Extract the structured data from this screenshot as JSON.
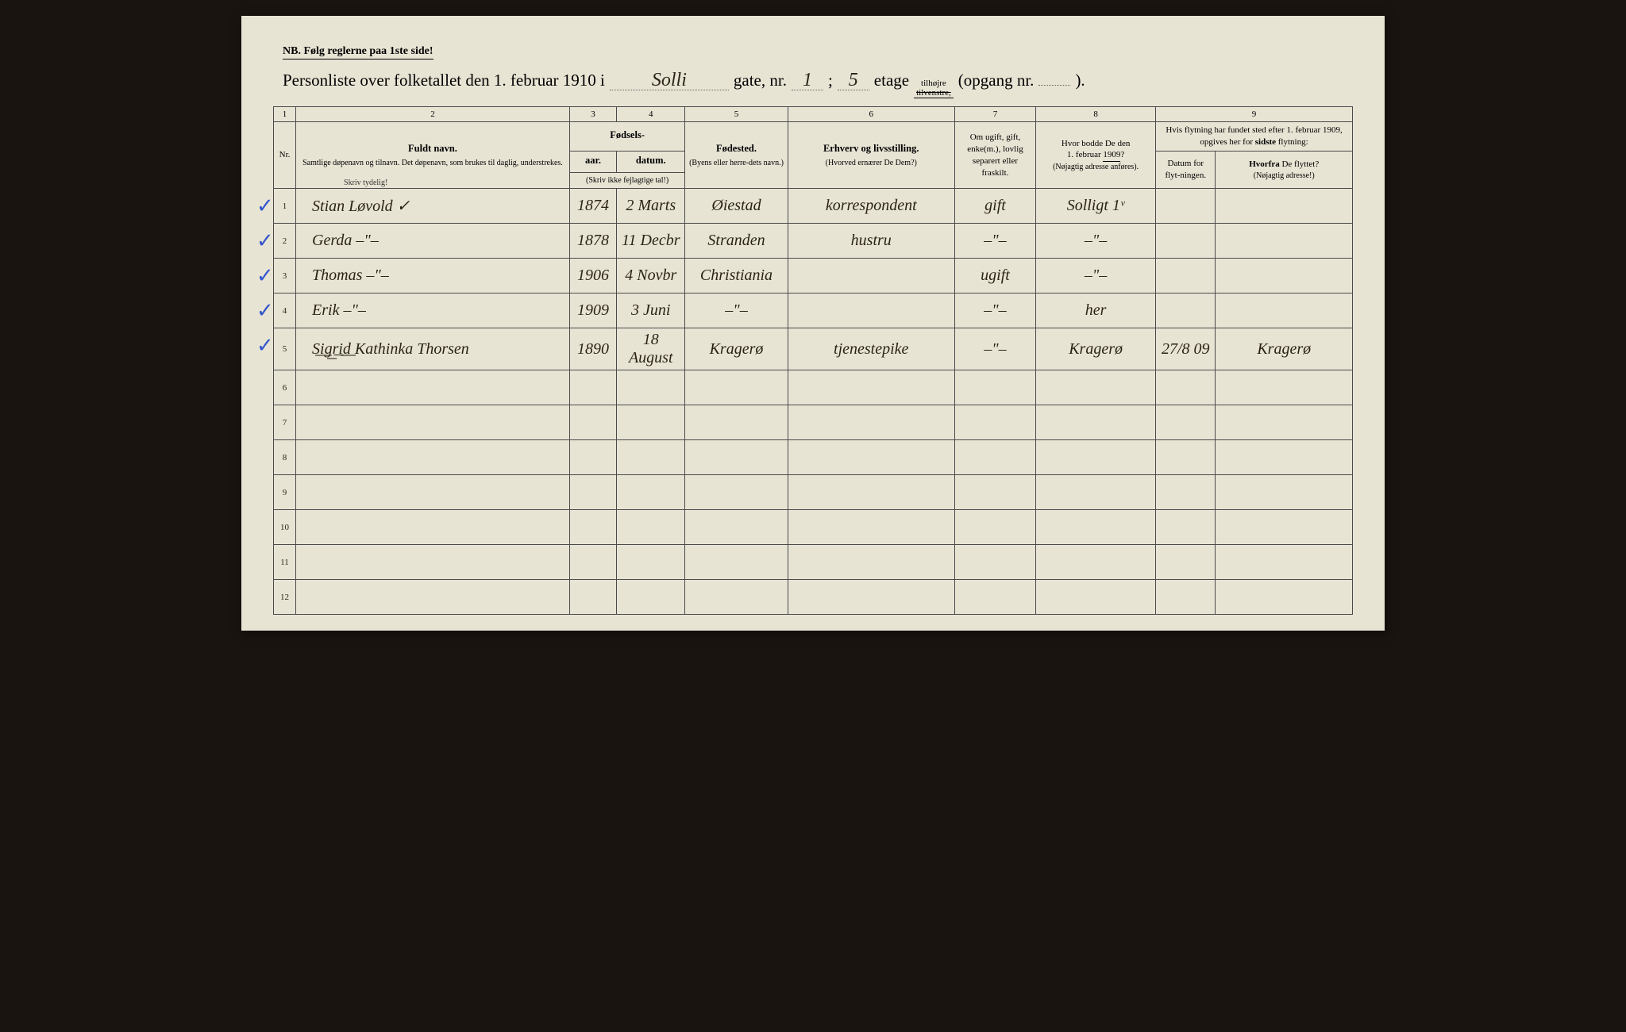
{
  "colors": {
    "page_bg": "#e8e4d4",
    "body_bg": "#1a1410",
    "ink": "#2a2318",
    "rule": "#4a4a4a",
    "checkmark": "#3355cc"
  },
  "header": {
    "nb": "NB.  Følg reglerne paa 1ste side!",
    "title_prefix": "Personliste over folketallet den 1. februar 1910 i",
    "street": "Solli",
    "gate_label": "gate, nr.",
    "gate_nr": "1",
    "semicolon": ";",
    "etage_nr": "5",
    "etage_label": "etage",
    "tilhojre": "tilhøjre",
    "tilvenstre": "tilvenstre,",
    "opgang_prefix": "(opgang nr.",
    "opgang_nr": "",
    "opgang_suffix": ")."
  },
  "column_numbers": [
    "1",
    "2",
    "3",
    "4",
    "5",
    "6",
    "7",
    "8",
    "9"
  ],
  "columns": {
    "name": {
      "main": "Fuldt navn.",
      "sub": "Samtlige døpenavn og tilnavn. Det døpenavn, som brukes til daglig, understrekes."
    },
    "birth_group": "Fødsels-",
    "year": {
      "main": "aar.",
      "sub": "(Skriv ikke fejlagtige tal!)"
    },
    "date": "datum.",
    "birthplace": {
      "main": "Fødested.",
      "sub": "(Byens eller herre-dets navn.)"
    },
    "occupation": {
      "main": "Erhverv og livsstilling.",
      "sub": "(Hvorved ernærer De Dem?)"
    },
    "marital": "Om ugift, gift, enke(m.), lovlig separert eller fraskilt.",
    "addr1909": {
      "main": "Hvor bodde De den 1. februar 1909?",
      "sub": "(Nøjagtig adresse anføres)."
    },
    "col9_top": "Hvis flytning har fundet sted efter 1. februar 1909, opgives her for sidste flytning:",
    "movedate": "Datum for flyt-ningen.",
    "movefrom": {
      "main": "Hvorfra De flyttet?",
      "sub": "(Nøjagtig adresse!)"
    },
    "nr": "Nr.",
    "skriv": "Skriv tydelig!"
  },
  "rows": [
    {
      "n": "1",
      "check": true,
      "name": "Stian Løvold ✓",
      "year": "1874",
      "date": "2 Marts",
      "birthplace": "Øiestad",
      "occupation": "korrespondent",
      "marital": "gift",
      "addr": "Solligt 1ᵛ",
      "mdate": "",
      "mfrom": ""
    },
    {
      "n": "2",
      "check": true,
      "name": "Gerda   –\"–",
      "year": "1878",
      "date": "11 Decbr",
      "birthplace": "Stranden",
      "occupation": "hustru",
      "marital": "–\"–",
      "addr": "–\"–",
      "mdate": "",
      "mfrom": ""
    },
    {
      "n": "3",
      "check": true,
      "name": "Thomas   –\"–",
      "year": "1906",
      "date": "4 Novbr",
      "birthplace": "Christiania",
      "occupation": "",
      "marital": "ugift",
      "addr": "–\"–",
      "mdate": "",
      "mfrom": ""
    },
    {
      "n": "4",
      "check": true,
      "name": "Erik   –\"–",
      "year": "1909",
      "date": "3 Juni",
      "birthplace": "–\"–",
      "occupation": "",
      "marital": "–\"–",
      "addr": "her",
      "mdate": "",
      "mfrom": ""
    },
    {
      "n": "5",
      "check": true,
      "name": "S͟i͟g͟r͟i͟d͟ Kathinka Thorsen",
      "year": "1890",
      "date": "18 August",
      "birthplace": "Kragerø",
      "occupation": "tjenestepike",
      "marital": "–\"–",
      "addr": "Kragerø",
      "mdate": "27/8 09",
      "mfrom": "Kragerø"
    },
    {
      "n": "6",
      "check": false,
      "name": "",
      "year": "",
      "date": "",
      "birthplace": "",
      "occupation": "",
      "marital": "",
      "addr": "",
      "mdate": "",
      "mfrom": ""
    },
    {
      "n": "7",
      "check": false,
      "name": "",
      "year": "",
      "date": "",
      "birthplace": "",
      "occupation": "",
      "marital": "",
      "addr": "",
      "mdate": "",
      "mfrom": ""
    },
    {
      "n": "8",
      "check": false,
      "name": "",
      "year": "",
      "date": "",
      "birthplace": "",
      "occupation": "",
      "marital": "",
      "addr": "",
      "mdate": "",
      "mfrom": ""
    },
    {
      "n": "9",
      "check": false,
      "name": "",
      "year": "",
      "date": "",
      "birthplace": "",
      "occupation": "",
      "marital": "",
      "addr": "",
      "mdate": "",
      "mfrom": ""
    },
    {
      "n": "10",
      "check": false,
      "name": "",
      "year": "",
      "date": "",
      "birthplace": "",
      "occupation": "",
      "marital": "",
      "addr": "",
      "mdate": "",
      "mfrom": ""
    },
    {
      "n": "11",
      "check": false,
      "name": "",
      "year": "",
      "date": "",
      "birthplace": "",
      "occupation": "",
      "marital": "",
      "addr": "",
      "mdate": "",
      "mfrom": ""
    },
    {
      "n": "12",
      "check": false,
      "name": "",
      "year": "",
      "date": "",
      "birthplace": "",
      "occupation": "",
      "marital": "",
      "addr": "",
      "mdate": "",
      "mfrom": ""
    }
  ]
}
